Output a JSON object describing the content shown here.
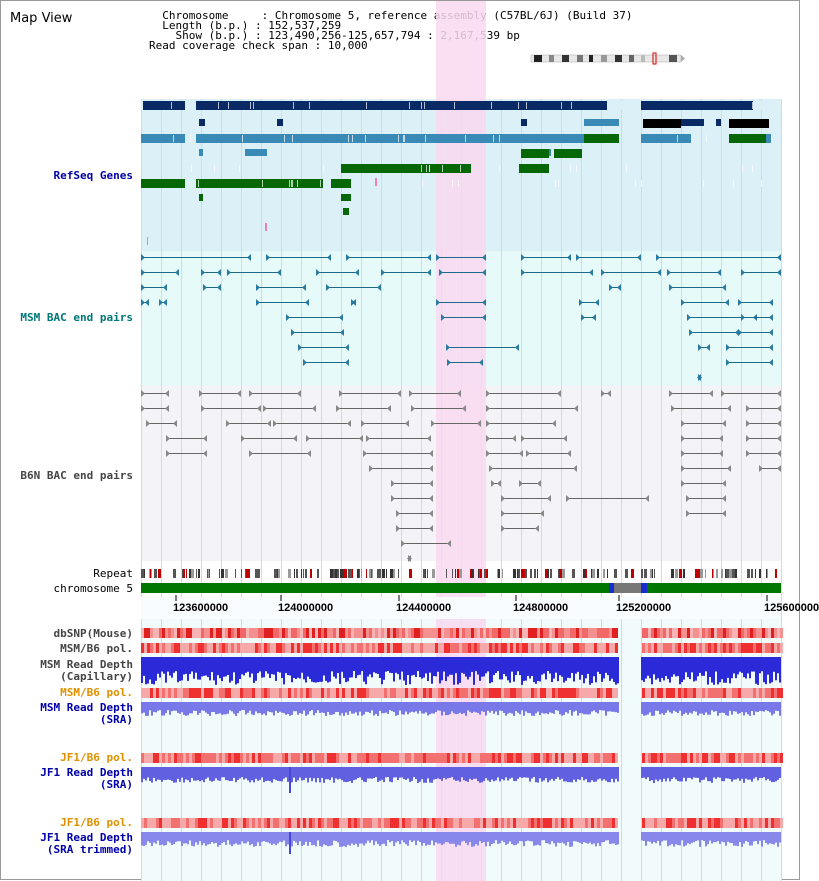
{
  "title": "Map View",
  "info": {
    "chromosome_label": "Chromosome",
    "chromosome_value": "Chromosome 5, reference assembly (C57BL/6J) (Build 37)",
    "length_label": "Length (b.p.)",
    "length_value": "152,537,259",
    "show_label": "Show (b.p.)",
    "show_value": "123,490,256-125,657,794 : 2,167,539 bp",
    "coverage_label": "Read coverage check span",
    "coverage_value": "10,000"
  },
  "tracks": {
    "refseq": "RefSeq Genes",
    "msm_bac": "MSM BAC end pairs",
    "b6n_bac": "B6N BAC end pairs",
    "repeat": "Repeat",
    "chromosome": "chromosome 5",
    "dbsnp": "dbSNP(Mouse)",
    "msm_b6_pol": "MSM/B6 pol.",
    "msm_read_depth_cap": "MSM Read Depth",
    "capillary": "(Capillary)",
    "msm_b6_pol_sra": "MSM/B6 pol.",
    "msm_read_depth_sra": "MSM Read Depth",
    "sra": "(SRA)",
    "jf1_b6_pol": "JF1/B6 pol.",
    "jf1_read_depth": "JF1 Read Depth",
    "sra2": "(SRA)",
    "jf1_b6_pol_trim": "JF1/B6 pol.",
    "jf1_read_depth_trim": "JF1 Read Depth",
    "sra_trimmed": "(SRA trimmed)"
  },
  "ruler": {
    "ticks": [
      "123600000",
      "124000000",
      "124400000",
      "124800000",
      "125200000",
      "125600000"
    ]
  },
  "colors": {
    "highlight": "#f9d8f0",
    "refseq_bg": "#dcf0f8",
    "msm_bg": "#e6fafa",
    "b6n_bg": "#f4f4f8",
    "chrom_green": "#007800",
    "gene_dark": "#0a2a66",
    "gene_mid": "#3a8ab8",
    "gene_green": "#056705"
  }
}
